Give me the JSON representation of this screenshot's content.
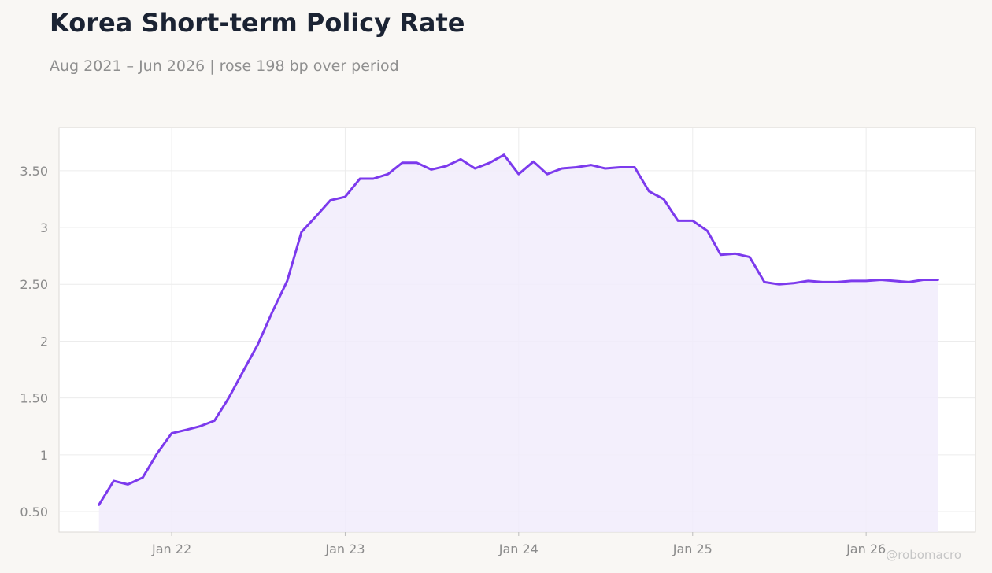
{
  "title": "Korea Short-term Policy Rate",
  "subtitle": "Aug 2021 – Jun 2026 | rose 198 bp over period",
  "watermark": "@robomacro",
  "colors": {
    "line": "#7c3aed",
    "fill": "#f1ecfc",
    "plot_bg": "#ffffff",
    "page_bg": "#f9f7f4",
    "grid": "#ececec",
    "axis_border": "#dcdad6"
  },
  "chart_data": {
    "type": "area",
    "title": "Korea Short-term Policy Rate",
    "subtitle": "Aug 2021 – Jun 2026 | rose 198 bp over period",
    "xlabel": "",
    "ylabel": "",
    "x_ticks": [
      {
        "label": "Jan 22",
        "date": "2022-01"
      },
      {
        "label": "Jan 23",
        "date": "2023-01"
      },
      {
        "label": "Jan 24",
        "date": "2024-01"
      },
      {
        "label": "Jan 25",
        "date": "2025-01"
      },
      {
        "label": "Jan 26",
        "date": "2026-01"
      }
    ],
    "y_ticks": [
      {
        "label": "0.50",
        "value": 0.5
      },
      {
        "label": "1",
        "value": 1
      },
      {
        "label": "1.50",
        "value": 1.5
      },
      {
        "label": "2",
        "value": 2
      },
      {
        "label": "2.50",
        "value": 2.5
      },
      {
        "label": "3",
        "value": 3
      },
      {
        "label": "3.50",
        "value": 3.5
      }
    ],
    "xlim": [
      "2021-05-09",
      "2026-08-19"
    ],
    "ylim": [
      0.32,
      3.88
    ],
    "grid": true,
    "legend": "none",
    "series": [
      {
        "x": [
          "2021-08",
          "2021-09",
          "2021-10",
          "2021-11",
          "2021-12",
          "2022-01",
          "2022-02",
          "2022-03",
          "2022-04",
          "2022-05",
          "2022-06",
          "2022-07",
          "2022-08",
          "2022-09",
          "2022-10",
          "2022-11",
          "2022-12",
          "2023-01",
          "2023-02",
          "2023-03",
          "2023-04",
          "2023-05",
          "2023-06",
          "2023-07",
          "2023-08",
          "2023-09",
          "2023-10",
          "2023-11",
          "2023-12",
          "2024-01",
          "2024-02",
          "2024-03",
          "2024-04",
          "2024-05",
          "2024-06",
          "2024-07",
          "2024-08",
          "2024-09",
          "2024-10",
          "2024-11",
          "2024-12",
          "2025-01",
          "2025-02",
          "2025-03",
          "2025-04",
          "2025-05",
          "2025-06",
          "2025-07",
          "2025-08",
          "2025-09",
          "2025-10",
          "2025-11",
          "2025-12",
          "2026-01",
          "2026-02",
          "2026-03",
          "2026-04",
          "2026-05",
          "2026-06"
        ],
        "values": [
          0.56,
          0.77,
          0.74,
          0.8,
          1.01,
          1.19,
          1.22,
          1.25,
          1.3,
          1.5,
          1.74,
          1.97,
          2.26,
          2.53,
          2.96,
          3.1,
          3.24,
          3.27,
          3.43,
          3.43,
          3.47,
          3.57,
          3.57,
          3.51,
          3.54,
          3.6,
          3.52,
          3.57,
          3.64,
          3.47,
          3.58,
          3.47,
          3.52,
          3.53,
          3.55,
          3.52,
          3.53,
          3.53,
          3.32,
          3.25,
          3.06,
          3.06,
          2.97,
          2.76,
          2.77,
          2.74,
          2.52,
          2.5,
          2.51,
          2.53,
          2.52,
          2.52,
          2.53,
          2.53,
          2.54,
          2.53,
          2.52,
          2.54,
          2.54
        ]
      }
    ]
  }
}
